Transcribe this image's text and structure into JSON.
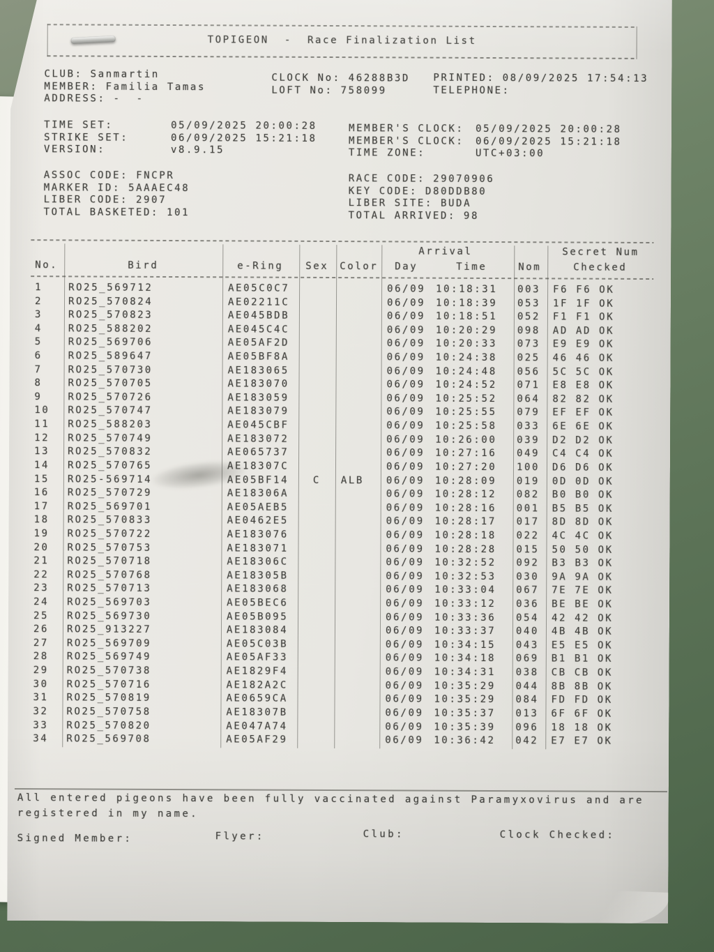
{
  "photo": {
    "table_surface_green": "#5f7759",
    "paper_color": "#e9e8e3",
    "ink_color": "#31312d"
  },
  "document": {
    "title": "TOPIGEON  -  Race Finalization List",
    "info_left": [
      {
        "label": "CLUB:",
        "value": "Sanmartin"
      },
      {
        "label": "MEMBER:",
        "value": "Familia Tamas"
      },
      {
        "label": "ADDRESS:",
        "value": "-  -"
      }
    ],
    "info_center": [
      {
        "label": "CLOCK No:",
        "value": "46288B3D"
      },
      {
        "label": "LOFT No:",
        "value": "758099"
      }
    ],
    "info_right": [
      {
        "label": "PRINTED:",
        "value": "08/09/2025 17:54:13"
      },
      {
        "label": "TELEPHONE:",
        "value": ""
      }
    ],
    "time_left": [
      {
        "label": "TIME SET:",
        "value": "05/09/2025 20:00:28"
      },
      {
        "label": "STRIKE SET:",
        "value": "06/09/2025 15:21:18"
      },
      {
        "label": "VERSION:",
        "value": "v8.9.15"
      }
    ],
    "time_right": [
      {
        "label": "MEMBER'S CLOCK:",
        "value": "05/09/2025 20:00:28"
      },
      {
        "label": "MEMBER'S CLOCK:",
        "value": "06/09/2025 15:21:18"
      },
      {
        "label": "TIME ZONE:",
        "value": "UTC+03:00"
      }
    ],
    "codes_left": [
      {
        "label": "ASSOC CODE:",
        "value": "FNCPR"
      },
      {
        "label": "MARKER ID:",
        "value": "5AAAEC48"
      },
      {
        "label": "LIBER CODE:",
        "value": "2907"
      },
      {
        "label": "TOTAL BASKETED:",
        "value": "101"
      }
    ],
    "codes_right": [
      {
        "label": "RACE CODE:",
        "value": "29070906"
      },
      {
        "label": "KEY CODE:",
        "value": "D80DDB80"
      },
      {
        "label": "LIBER SITE:",
        "value": "BUDA"
      },
      {
        "label": "TOTAL ARRIVED:",
        "value": "98"
      }
    ]
  },
  "table": {
    "headers": {
      "no": "No.",
      "bird": "Bird",
      "ering": "e-Ring",
      "sex": "Sex",
      "color": "Color",
      "arrival": "Arrival",
      "day": "Day",
      "time": "Time",
      "nom": "Nom",
      "secret1": "Secret Num",
      "secret2": "Checked"
    },
    "rows": [
      {
        "no": "1",
        "bird": "RO25_569712",
        "ering": "AE05C0C7",
        "sex": "",
        "color": "",
        "day": "06/09",
        "time": "10:18:31",
        "nom": "003",
        "secret": "F6 F6 OK"
      },
      {
        "no": "2",
        "bird": "RO25_570824",
        "ering": "AE02211C",
        "sex": "",
        "color": "",
        "day": "06/09",
        "time": "10:18:39",
        "nom": "053",
        "secret": "1F 1F OK"
      },
      {
        "no": "3",
        "bird": "RO25_570823",
        "ering": "AE045BDB",
        "sex": "",
        "color": "",
        "day": "06/09",
        "time": "10:18:51",
        "nom": "052",
        "secret": "F1 F1 OK"
      },
      {
        "no": "4",
        "bird": "RO25_588202",
        "ering": "AE045C4C",
        "sex": "",
        "color": "",
        "day": "06/09",
        "time": "10:20:29",
        "nom": "098",
        "secret": "AD AD OK"
      },
      {
        "no": "5",
        "bird": "RO25_569706",
        "ering": "AE05AF2D",
        "sex": "",
        "color": "",
        "day": "06/09",
        "time": "10:20:33",
        "nom": "073",
        "secret": "E9 E9 OK"
      },
      {
        "no": "6",
        "bird": "RO25_589647",
        "ering": "AE05BF8A",
        "sex": "",
        "color": "",
        "day": "06/09",
        "time": "10:24:38",
        "nom": "025",
        "secret": "46 46 OK"
      },
      {
        "no": "7",
        "bird": "RO25_570730",
        "ering": "AE183065",
        "sex": "",
        "color": "",
        "day": "06/09",
        "time": "10:24:48",
        "nom": "056",
        "secret": "5C 5C OK"
      },
      {
        "no": "8",
        "bird": "RO25_570705",
        "ering": "AE183070",
        "sex": "",
        "color": "",
        "day": "06/09",
        "time": "10:24:52",
        "nom": "071",
        "secret": "E8 E8 OK"
      },
      {
        "no": "9",
        "bird": "RO25_570726",
        "ering": "AE183059",
        "sex": "",
        "color": "",
        "day": "06/09",
        "time": "10:25:52",
        "nom": "064",
        "secret": "82 82 OK"
      },
      {
        "no": "10",
        "bird": "RO25_570747",
        "ering": "AE183079",
        "sex": "",
        "color": "",
        "day": "06/09",
        "time": "10:25:55",
        "nom": "079",
        "secret": "EF EF OK"
      },
      {
        "no": "11",
        "bird": "RO25_588203",
        "ering": "AE045CBF",
        "sex": "",
        "color": "",
        "day": "06/09",
        "time": "10:25:58",
        "nom": "033",
        "secret": "6E 6E OK"
      },
      {
        "no": "12",
        "bird": "RO25_570749",
        "ering": "AE183072",
        "sex": "",
        "color": "",
        "day": "06/09",
        "time": "10:26:00",
        "nom": "039",
        "secret": "D2 D2 OK"
      },
      {
        "no": "13",
        "bird": "RO25_570832",
        "ering": "AE065737",
        "sex": "",
        "color": "",
        "day": "06/09",
        "time": "10:27:16",
        "nom": "049",
        "secret": "C4 C4 OK"
      },
      {
        "no": "14",
        "bird": "RO25_570765",
        "ering": "AE18307C",
        "sex": "",
        "color": "",
        "day": "06/09",
        "time": "10:27:20",
        "nom": "100",
        "secret": "D6 D6 OK"
      },
      {
        "no": "15",
        "bird": "RO25-569714",
        "ering": "AE05BF14",
        "sex": "C",
        "color": "ALB",
        "day": "06/09",
        "time": "10:28:09",
        "nom": "019",
        "secret": "0D 0D OK"
      },
      {
        "no": "16",
        "bird": "RO25_570729",
        "ering": "AE18306A",
        "sex": "",
        "color": "",
        "day": "06/09",
        "time": "10:28:12",
        "nom": "082",
        "secret": "B0 B0 OK"
      },
      {
        "no": "17",
        "bird": "RO25_569701",
        "ering": "AE05AEB5",
        "sex": "",
        "color": "",
        "day": "06/09",
        "time": "10:28:16",
        "nom": "001",
        "secret": "B5 B5 OK"
      },
      {
        "no": "18",
        "bird": "RO25_570833",
        "ering": "AE0462E5",
        "sex": "",
        "color": "",
        "day": "06/09",
        "time": "10:28:17",
        "nom": "017",
        "secret": "8D 8D OK"
      },
      {
        "no": "19",
        "bird": "RO25_570722",
        "ering": "AE183076",
        "sex": "",
        "color": "",
        "day": "06/09",
        "time": "10:28:18",
        "nom": "022",
        "secret": "4C 4C OK"
      },
      {
        "no": "20",
        "bird": "RO25_570753",
        "ering": "AE183071",
        "sex": "",
        "color": "",
        "day": "06/09",
        "time": "10:28:28",
        "nom": "015",
        "secret": "50 50 OK"
      },
      {
        "no": "21",
        "bird": "RO25_570718",
        "ering": "AE18306C",
        "sex": "",
        "color": "",
        "day": "06/09",
        "time": "10:32:52",
        "nom": "092",
        "secret": "B3 B3 OK"
      },
      {
        "no": "22",
        "bird": "RO25_570768",
        "ering": "AE18305B",
        "sex": "",
        "color": "",
        "day": "06/09",
        "time": "10:32:53",
        "nom": "030",
        "secret": "9A 9A OK"
      },
      {
        "no": "23",
        "bird": "RO25_570713",
        "ering": "AE183068",
        "sex": "",
        "color": "",
        "day": "06/09",
        "time": "10:33:04",
        "nom": "067",
        "secret": "7E 7E OK"
      },
      {
        "no": "24",
        "bird": "RO25_569703",
        "ering": "AE05BEC6",
        "sex": "",
        "color": "",
        "day": "06/09",
        "time": "10:33:12",
        "nom": "036",
        "secret": "BE BE OK"
      },
      {
        "no": "25",
        "bird": "RO25_569730",
        "ering": "AE05B095",
        "sex": "",
        "color": "",
        "day": "06/09",
        "time": "10:33:36",
        "nom": "054",
        "secret": "42 42 OK"
      },
      {
        "no": "26",
        "bird": "RO25_913227",
        "ering": "AE183084",
        "sex": "",
        "color": "",
        "day": "06/09",
        "time": "10:33:37",
        "nom": "040",
        "secret": "4B 4B OK"
      },
      {
        "no": "27",
        "bird": "RO25_569709",
        "ering": "AE05C03B",
        "sex": "",
        "color": "",
        "day": "06/09",
        "time": "10:34:15",
        "nom": "043",
        "secret": "E5 E5 OK"
      },
      {
        "no": "28",
        "bird": "RO25_569749",
        "ering": "AE05AF33",
        "sex": "",
        "color": "",
        "day": "06/09",
        "time": "10:34:18",
        "nom": "069",
        "secret": "B1 B1 OK"
      },
      {
        "no": "29",
        "bird": "RO25_570738",
        "ering": "AE1829F4",
        "sex": "",
        "color": "",
        "day": "06/09",
        "time": "10:34:31",
        "nom": "038",
        "secret": "CB CB OK"
      },
      {
        "no": "30",
        "bird": "RO25_570716",
        "ering": "AE182A2C",
        "sex": "",
        "color": "",
        "day": "06/09",
        "time": "10:35:29",
        "nom": "044",
        "secret": "8B 8B OK"
      },
      {
        "no": "31",
        "bird": "RO25_570819",
        "ering": "AE0659CA",
        "sex": "",
        "color": "",
        "day": "06/09",
        "time": "10:35:29",
        "nom": "084",
        "secret": "FD FD OK"
      },
      {
        "no": "32",
        "bird": "RO25_570758",
        "ering": "AE18307B",
        "sex": "",
        "color": "",
        "day": "06/09",
        "time": "10:35:37",
        "nom": "013",
        "secret": "6F 6F OK"
      },
      {
        "no": "33",
        "bird": "RO25_570820",
        "ering": "AE047A74",
        "sex": "",
        "color": "",
        "day": "06/09",
        "time": "10:35:39",
        "nom": "096",
        "secret": "18 18 OK"
      },
      {
        "no": "34",
        "bird": "RO25_569708",
        "ering": "AE05AF29",
        "sex": "",
        "color": "",
        "day": "06/09",
        "time": "10:36:42",
        "nom": "042",
        "secret": "E7 E7 OK"
      }
    ]
  },
  "footer": {
    "vaccination_line1": "All entered pigeons have been fully vaccinated against Paramyxovirus and are",
    "vaccination_line2": "registered in my name.",
    "signed_member": "Signed Member:",
    "flyer": "Flyer:",
    "club": "Club:",
    "clock_checked": "Clock Checked:"
  }
}
